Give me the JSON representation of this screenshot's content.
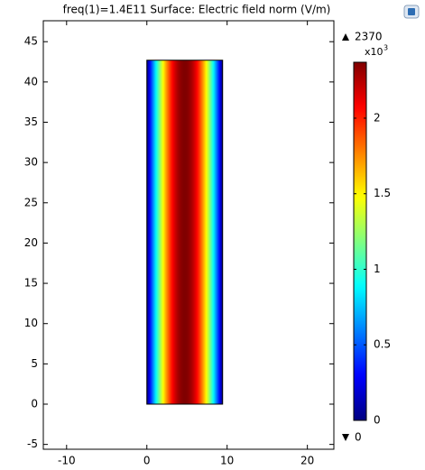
{
  "chart_data": {
    "type": "surface",
    "title": "freq(1)=1.4E11   Surface: Electric field norm (V/m)",
    "region": {
      "x": [
        0,
        9.44
      ],
      "y": [
        0,
        42.7
      ]
    },
    "xlim": [
      -12.9,
      23.3
    ],
    "ylim": [
      -5.6,
      47.6
    ],
    "xticks": [
      -10,
      0,
      10,
      20
    ],
    "yticks": [
      -5,
      0,
      5,
      10,
      15,
      20,
      25,
      30,
      35,
      40,
      45
    ],
    "colormap": "rainbow",
    "clim": [
      0,
      2.37
    ],
    "cticks": [
      0,
      0.5,
      1,
      1.5,
      2
    ],
    "colorbar_multiplier": "x10",
    "colorbar_exponent": "3",
    "max": 2370,
    "min": 0
  }
}
